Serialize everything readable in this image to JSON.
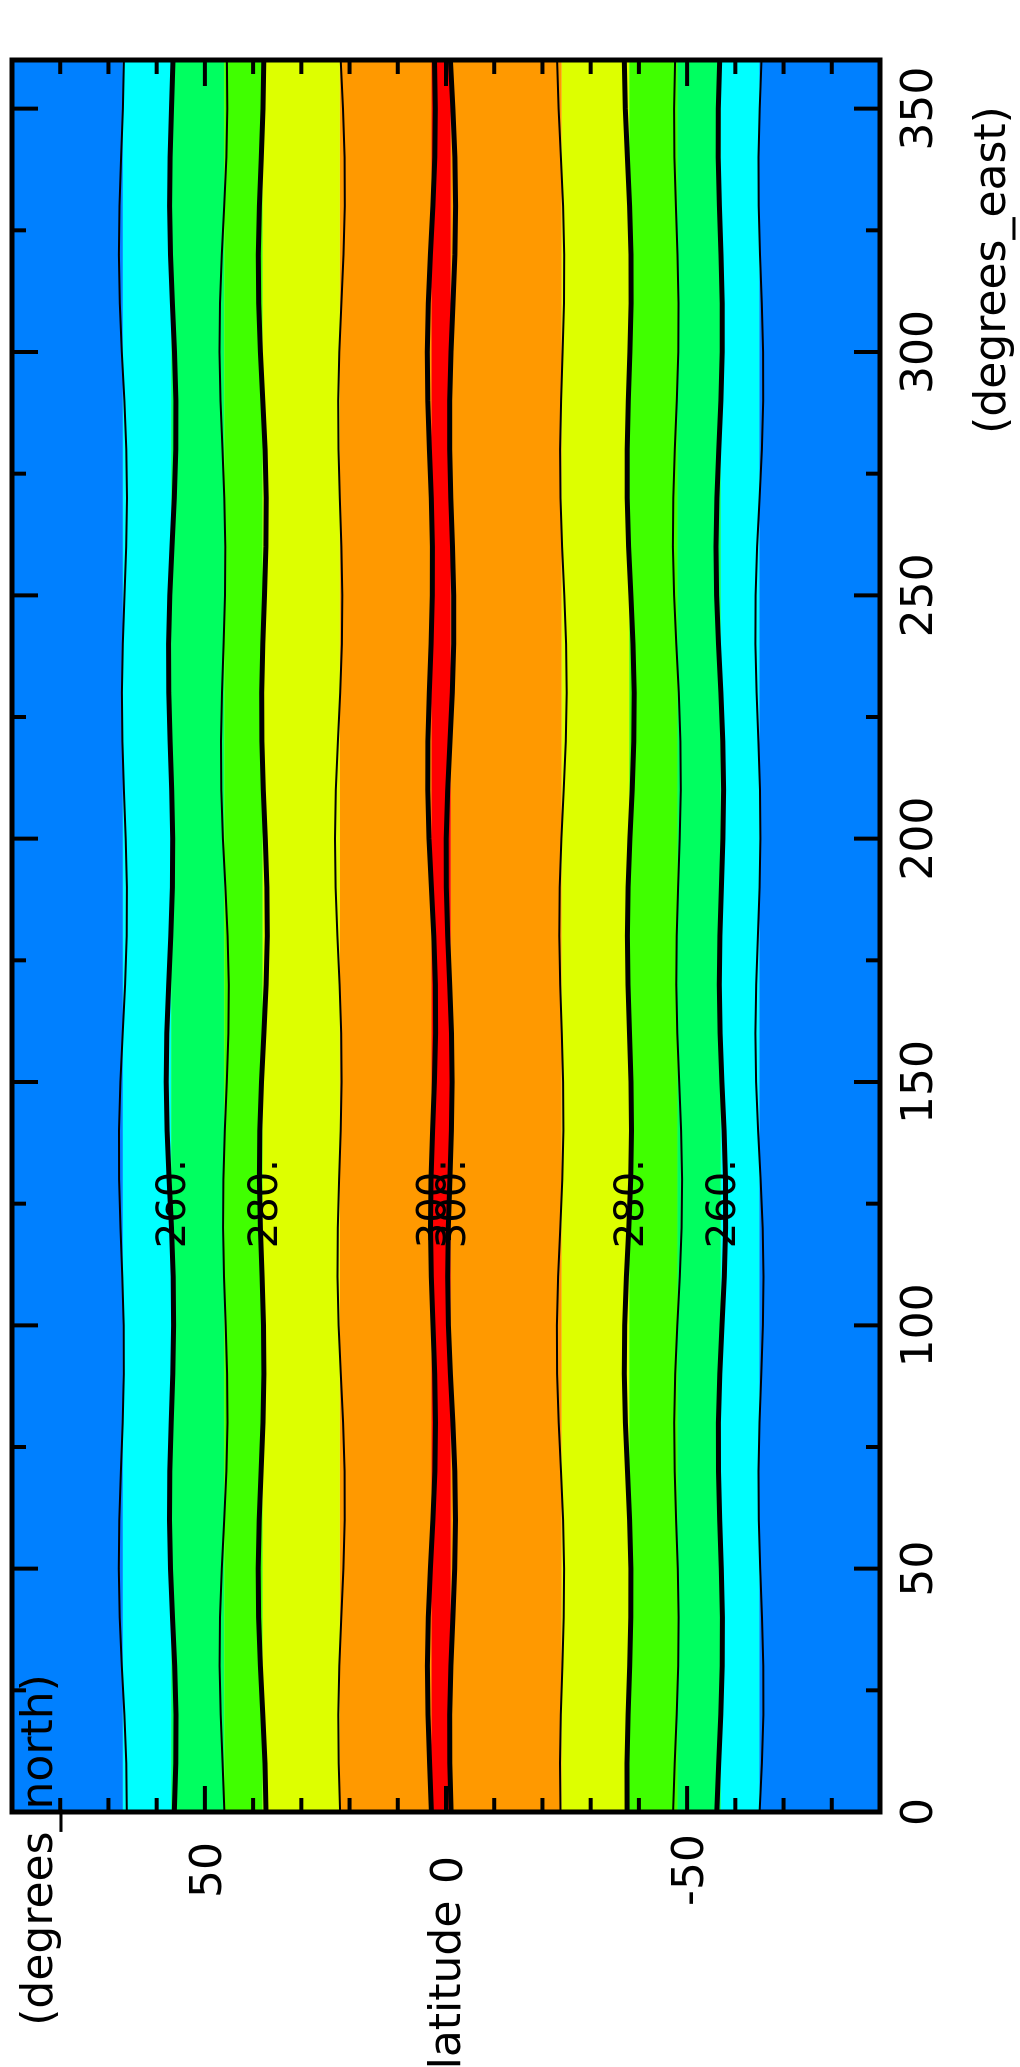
{
  "chart_data": {
    "type": "heatmap",
    "subtype": "filled-contour",
    "orientation": "rotated-90-clockwise",
    "xlabel": "(degrees_east)",
    "ylabel": "latitude",
    "ylabel_units": "(degrees_north)",
    "xlim": [
      0,
      360
    ],
    "ylim": [
      -90,
      90
    ],
    "x_ticks": [
      0,
      50,
      100,
      150,
      200,
      250,
      300,
      350
    ],
    "x_tick_labels": [
      "0",
      "50",
      "100",
      "150",
      "200",
      "250",
      "300",
      "350"
    ],
    "y_ticks": [
      50,
      0,
      -50
    ],
    "y_tick_labels": [
      "50",
      "0",
      "-50"
    ],
    "grid": false,
    "band_colors": [
      "#0080ff",
      "#00ffff",
      "#00ff60",
      "#40ff00",
      "#ddff00",
      "#ff9900",
      "#ff0000"
    ],
    "contour_lines": [
      {
        "value": 260,
        "latitude": 57,
        "bold": true
      },
      {
        "value": 280,
        "latitude": 38,
        "bold": true
      },
      {
        "value": 300,
        "latitude": 3,
        "bold": true
      },
      {
        "value": 300,
        "latitude": -1,
        "bold": true
      },
      {
        "value": 280,
        "latitude": -38,
        "bold": true
      },
      {
        "value": 260,
        "latitude": -57,
        "bold": true
      }
    ],
    "thin_contours": [
      67,
      46,
      22,
      -24,
      -48,
      -65
    ],
    "contour_labels": [
      {
        "text": "260.",
        "latitude": 57,
        "longitude": 125
      },
      {
        "text": "280.",
        "latitude": 38,
        "longitude": 125
      },
      {
        "text": "300.",
        "latitude": 3,
        "longitude": 125
      },
      {
        "text": "300.",
        "latitude": -1,
        "longitude": 125
      },
      {
        "text": "280.",
        "latitude": -38,
        "longitude": 125
      },
      {
        "text": "260.",
        "latitude": -57,
        "longitude": 125
      }
    ],
    "bands": [
      {
        "from": 90,
        "to": 67,
        "color": "#0080ff"
      },
      {
        "from": 67,
        "to": 57,
        "color": "#00ffff"
      },
      {
        "from": 57,
        "to": 46,
        "color": "#00ff60"
      },
      {
        "from": 46,
        "to": 38,
        "color": "#40ff00"
      },
      {
        "from": 38,
        "to": 22,
        "color": "#ddff00"
      },
      {
        "from": 22,
        "to": 3,
        "color": "#ff9900"
      },
      {
        "from": 3,
        "to": -1,
        "color": "#ff0000"
      },
      {
        "from": -1,
        "to": -24,
        "color": "#ff9900"
      },
      {
        "from": -24,
        "to": -38,
        "color": "#ddff00"
      },
      {
        "from": -38,
        "to": -48,
        "color": "#40ff00"
      },
      {
        "from": -48,
        "to": -57,
        "color": "#00ff60"
      },
      {
        "from": -57,
        "to": -65,
        "color": "#00ffff"
      },
      {
        "from": -65,
        "to": -90,
        "color": "#0080ff"
      }
    ]
  }
}
